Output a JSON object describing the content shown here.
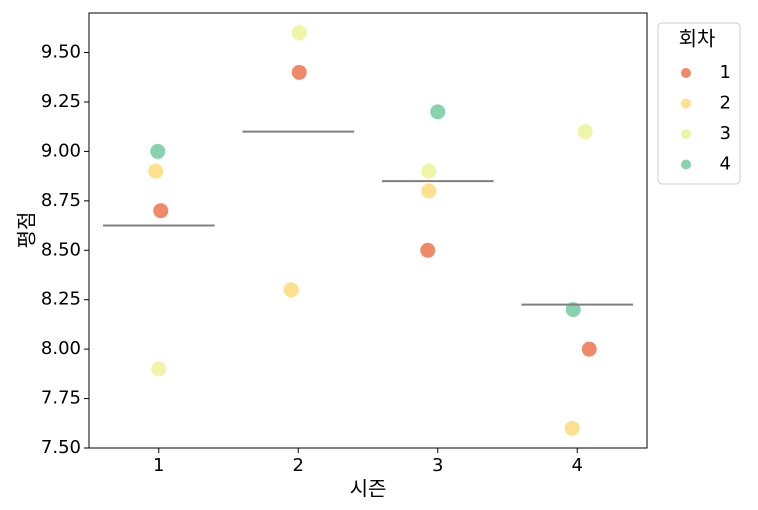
{
  "chart_data": {
    "type": "strip",
    "x_label": "시즌",
    "y_label": "평점",
    "categories": [
      "1",
      "2",
      "3",
      "4"
    ],
    "series": [
      {
        "name": "1",
        "color": "#ee8a68",
        "values": [
          8.7,
          9.4,
          8.5,
          8.0
        ]
      },
      {
        "name": "2",
        "color": "#fde08e",
        "values": [
          8.9,
          8.3,
          8.8,
          7.6
        ]
      },
      {
        "name": "3",
        "color": "#eff5a6",
        "values": [
          7.9,
          9.6,
          8.9,
          9.1
        ]
      },
      {
        "name": "4",
        "color": "#88d2ad",
        "values": [
          9.0,
          null,
          9.2,
          8.2
        ]
      }
    ],
    "means": [
      8.625,
      9.1,
      8.85,
      8.225
    ],
    "mean_color": "#7f7f7f",
    "legend_title": "회차",
    "legend": "upper right outside",
    "ylim": [
      7.5,
      9.7
    ],
    "yticks": [
      {
        "value": 7.5,
        "label": "7.50"
      },
      {
        "value": 7.75,
        "label": "7.75"
      },
      {
        "value": 8.0,
        "label": "8.00"
      },
      {
        "value": 8.25,
        "label": "8.25"
      },
      {
        "value": 8.5,
        "label": "8.50"
      },
      {
        "value": 8.75,
        "label": "8.75"
      },
      {
        "value": 9.0,
        "label": "9.00"
      },
      {
        "value": 9.25,
        "label": "9.25"
      },
      {
        "value": 9.5,
        "label": "9.50"
      }
    ]
  }
}
